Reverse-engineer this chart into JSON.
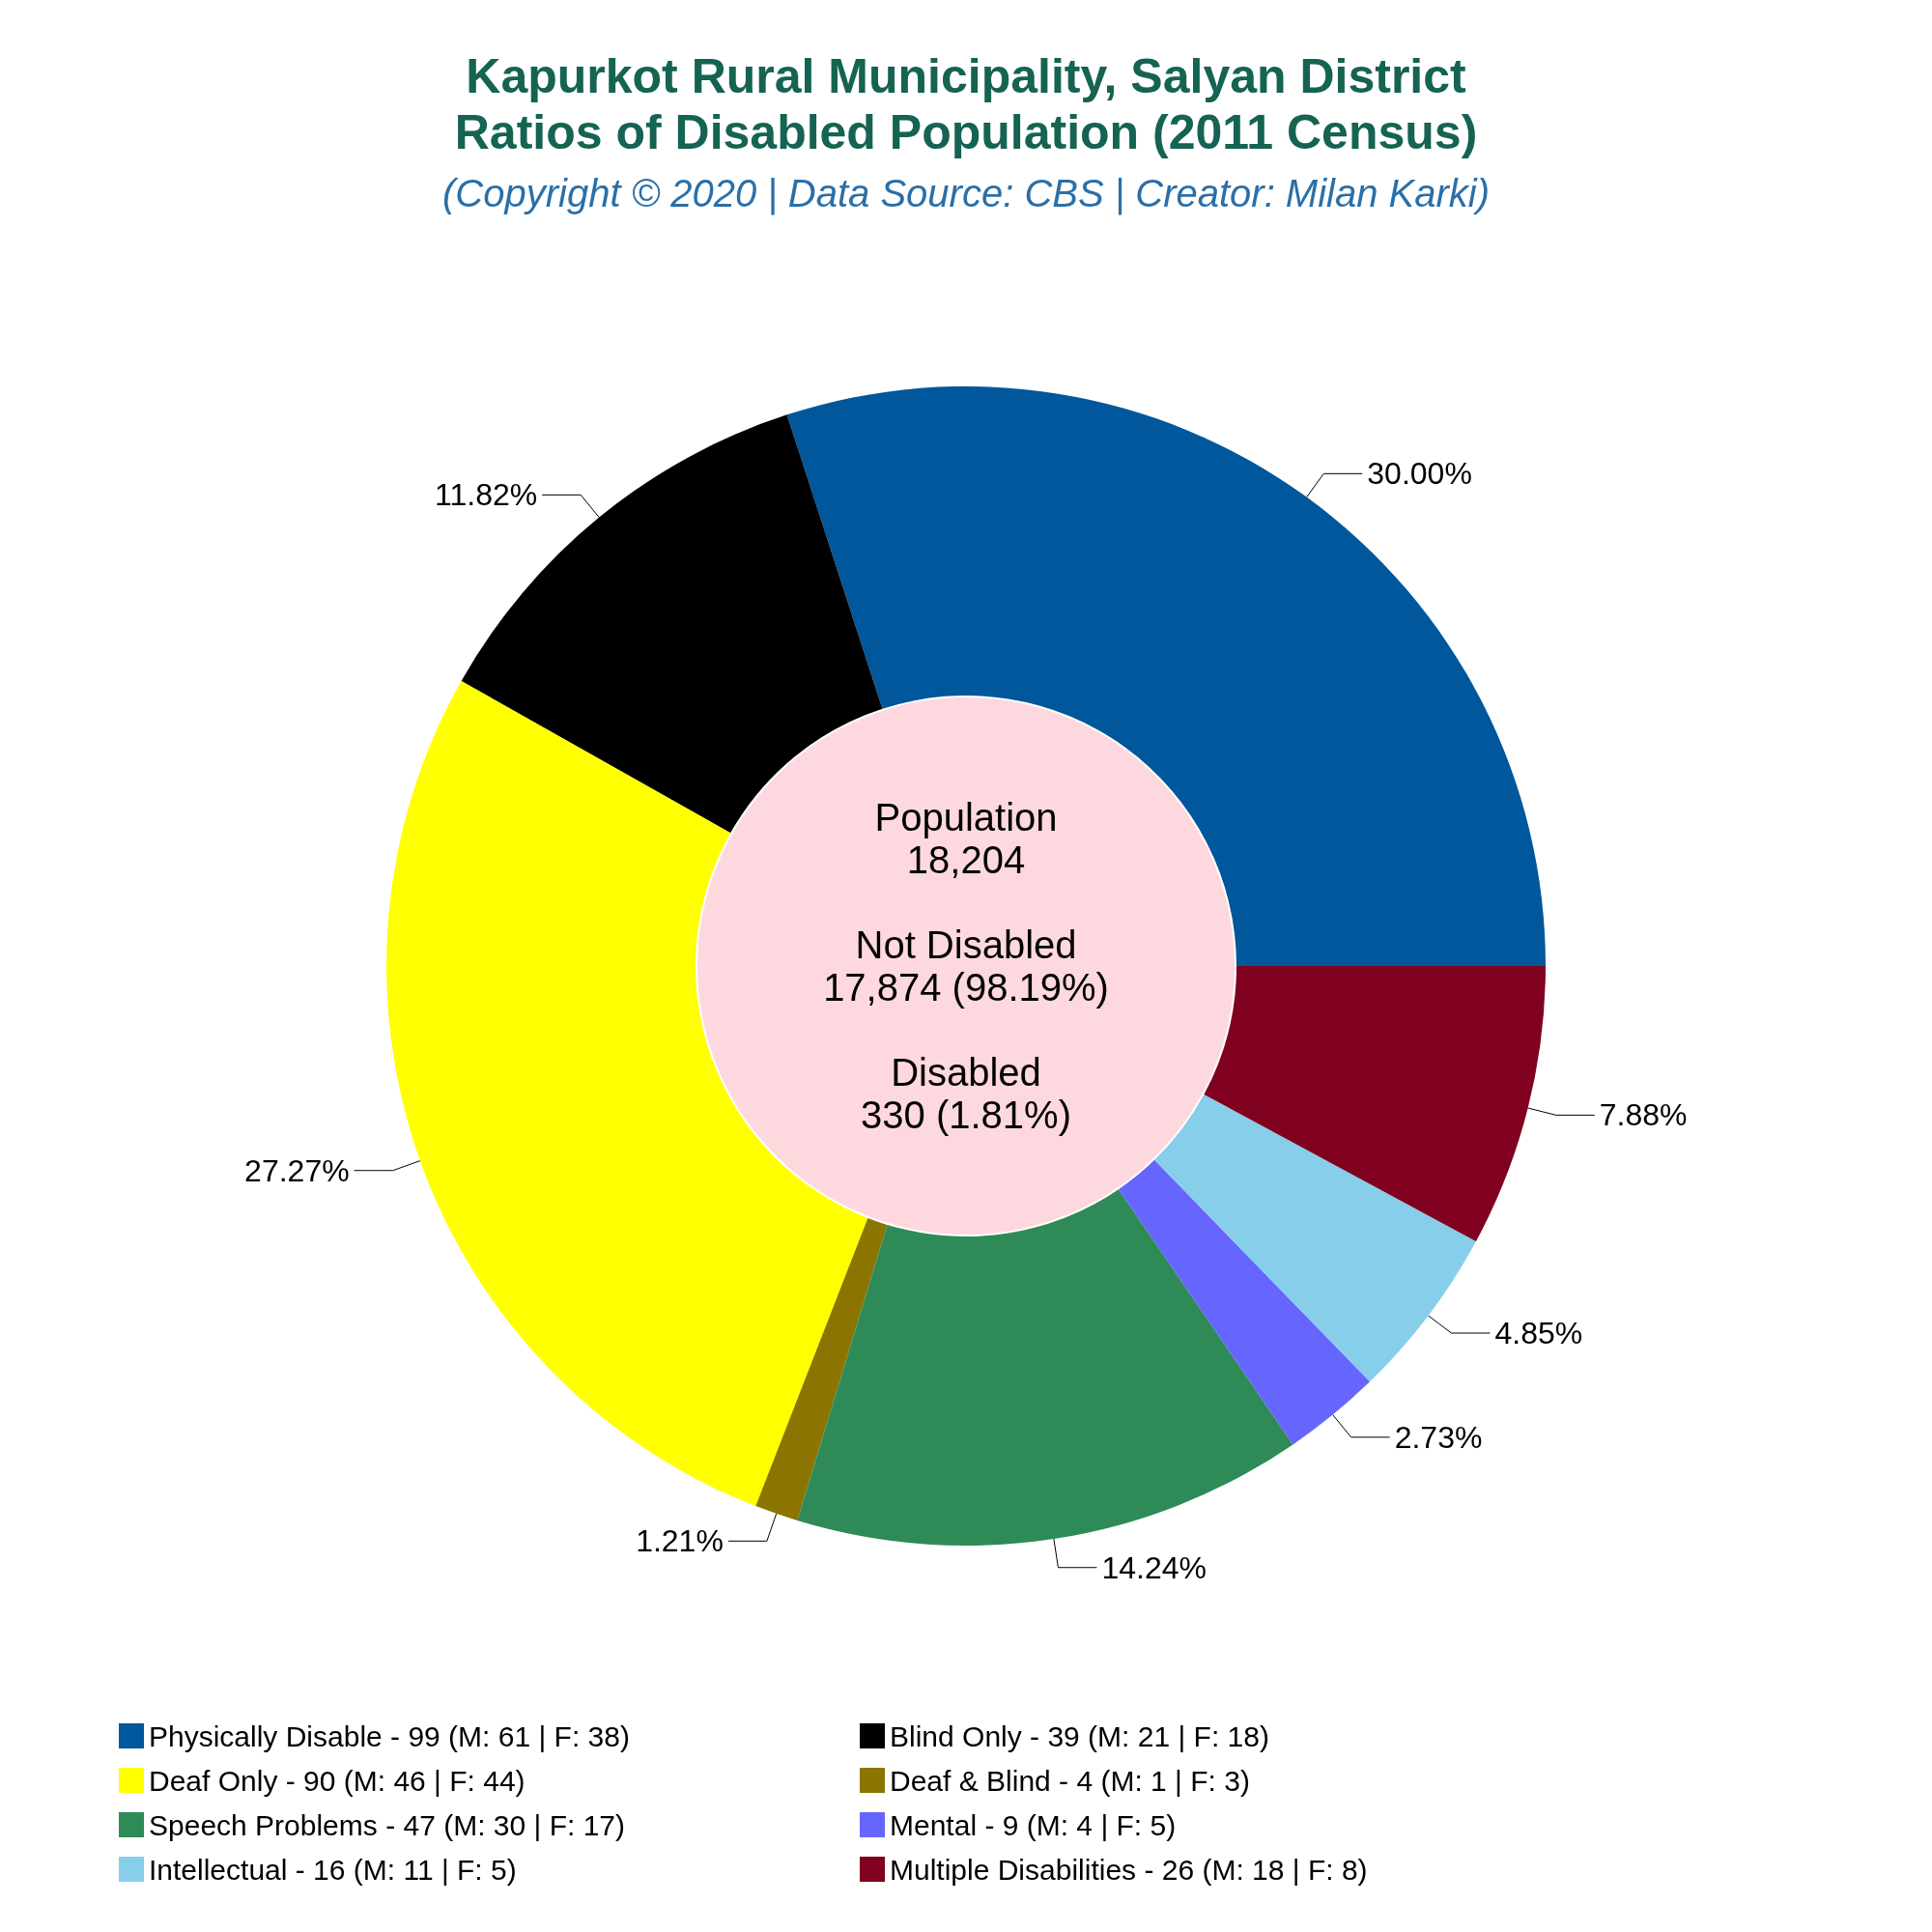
{
  "chart_data": {
    "type": "donut",
    "title": "Kapurkot Rural Municipality, Salyan District\nRatios of Disabled Population (2011 Census)",
    "subtitle": "(Copyright © 2020 | Data Source: CBS | Creator: Milan Karki)",
    "categories": [
      "Physically Disable - 99 (M: 61 | F: 38)",
      "Blind Only - 39 (M: 21 | F: 18)",
      "Deaf Only - 90 (M: 46 | F: 44)",
      "Deaf & Blind - 4 (M: 1 | F: 3)",
      "Speech Problems - 47 (M: 30 | F: 17)",
      "Mental - 9 (M: 4 | F: 5)",
      "Intellectual - 16 (M: 11 | F: 5)",
      "Multiple Disabilities - 26 (M: 18 | F: 8)"
    ],
    "values": [
      30.0,
      11.82,
      27.27,
      1.21,
      14.24,
      2.73,
      4.85,
      7.88
    ],
    "value_labels": [
      "30.00%",
      "11.82%",
      "27.27%",
      "1.21%",
      "14.24%",
      "2.73%",
      "4.85%",
      "7.88%"
    ],
    "colors": [
      "#01579b",
      "#000000",
      "#ffff00",
      "#8b7500",
      "#2e8b57",
      "#6666ff",
      "#87ceeb",
      "#800020"
    ],
    "annotations": [
      "Population\n18,204\n\nNot Disabled\n17,874 (98.19%)\n\nDisabled\n330 (1.81%)"
    ],
    "legend": "bottom"
  }
}
